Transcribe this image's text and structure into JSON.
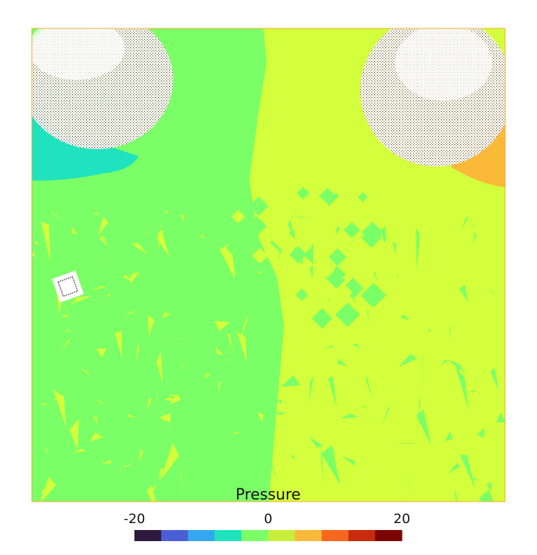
{
  "chart_data": {
    "type": "heatmap",
    "title": "Pressure",
    "colorbar": {
      "ticks": [
        -20,
        0,
        20
      ],
      "tick_labels": [
        "-20",
        "0",
        "20"
      ],
      "range": [
        -20,
        20
      ],
      "bins": [
        {
          "low": -20,
          "high": -16,
          "color": "#2d1a3e"
        },
        {
          "low": -16,
          "high": -12,
          "color": "#4a5fd6"
        },
        {
          "low": -12,
          "high": -8,
          "color": "#33a8f0"
        },
        {
          "low": -8,
          "high": -4,
          "color": "#1fe3be"
        },
        {
          "low": -4,
          "high": 0,
          "color": "#7bff66"
        },
        {
          "low": 0,
          "high": 4,
          "color": "#c9ee3a"
        },
        {
          "low": 4,
          "high": 8,
          "color": "#fbb93a"
        },
        {
          "low": 8,
          "high": 12,
          "color": "#f8661f"
        },
        {
          "low": 12,
          "high": 16,
          "color": "#c82c0c"
        },
        {
          "low": 16,
          "high": 20,
          "color": "#7b0402"
        }
      ]
    },
    "field": {
      "dominant_left_value": -2,
      "dominant_right_value": 2,
      "colors": {
        "left": "#7bff66",
        "right": "#d4ff3c",
        "cool": "#1fe3be",
        "warm": "#fbb93a",
        "border": "#f5a623"
      }
    }
  }
}
